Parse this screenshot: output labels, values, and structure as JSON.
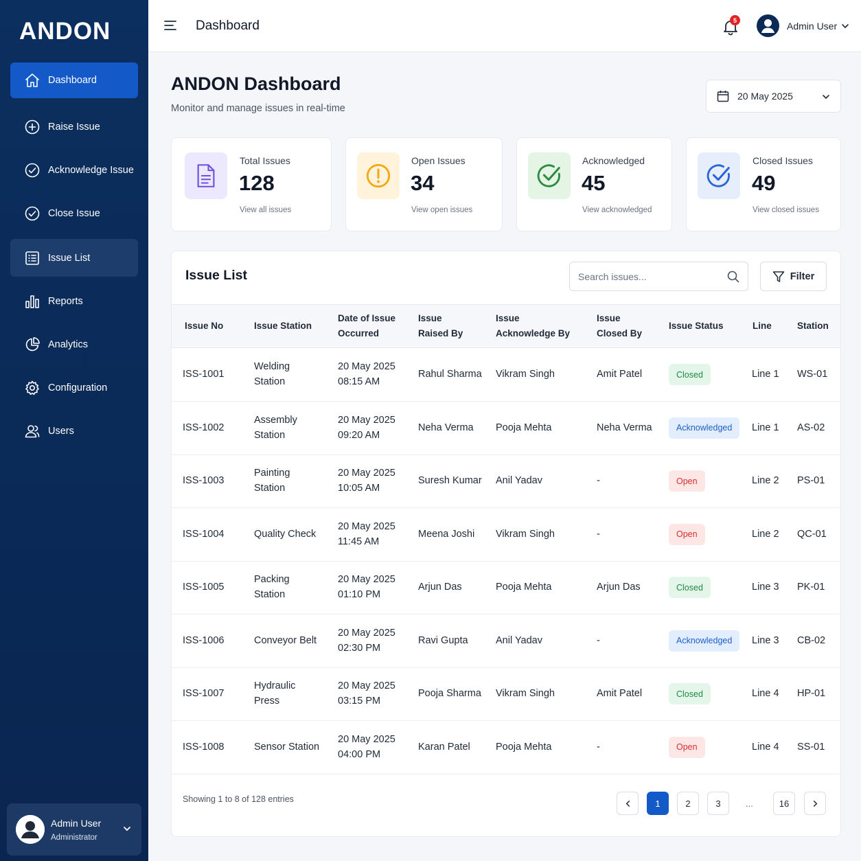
{
  "brand": "ANDON",
  "sidebar": {
    "items": [
      {
        "label": "Dashboard",
        "icon": "home-icon"
      },
      {
        "label": "Raise Issue",
        "icon": "plus-circle-icon"
      },
      {
        "label": "Acknowledge Issue",
        "icon": "check-circle-icon"
      },
      {
        "label": "Close Issue",
        "icon": "check-circle-icon"
      },
      {
        "label": "Issue List",
        "icon": "list-icon"
      },
      {
        "label": "Reports",
        "icon": "bar-chart-icon"
      },
      {
        "label": "Analytics",
        "icon": "pie-chart-icon"
      },
      {
        "label": "Configuration",
        "icon": "gear-icon"
      },
      {
        "label": "Users",
        "icon": "users-icon"
      }
    ],
    "user": {
      "name": "Admin User",
      "role": "Administrator"
    }
  },
  "header": {
    "title": "Dashboard",
    "notification_count": "5",
    "user_name": "Admin User"
  },
  "page": {
    "title": "ANDON Dashboard",
    "subtitle": "Monitor and manage issues in real-time",
    "date": "20 May 2025"
  },
  "cards": [
    {
      "label": "Total Issues",
      "value": "128",
      "link": "View all issues",
      "color": "#6d4ee0"
    },
    {
      "label": "Open Issues",
      "value": "34",
      "link": "View open issues",
      "color": "#f4a814"
    },
    {
      "label": "Acknowledged",
      "value": "45",
      "link": "View acknowledged",
      "color": "#2e8b3e"
    },
    {
      "label": "Closed Issues",
      "value": "49",
      "link": "View closed issues",
      "color": "#2a64d8"
    }
  ],
  "issue_list": {
    "title": "Issue List",
    "search_placeholder": "Search issues...",
    "filter_label": "Filter",
    "columns": [
      [
        "Issue No"
      ],
      [
        "Issue Station"
      ],
      [
        "Date of Issue",
        "Occurred"
      ],
      [
        "Issue",
        "Raised By"
      ],
      [
        "Issue",
        "Acknowledge By"
      ],
      [
        "Issue",
        "Closed By"
      ],
      [
        "Issue Status"
      ],
      [
        "Line"
      ],
      [
        "Station"
      ]
    ],
    "rows": [
      {
        "no": "ISS-1001",
        "station": [
          "Welding",
          "Station"
        ],
        "date": "20 May 2025",
        "time": "08:15 AM",
        "raised": "Rahul Sharma",
        "ack": "Vikram Singh",
        "closed": "Amit Patel",
        "status": "Closed",
        "line": "Line 1",
        "code": "WS-01"
      },
      {
        "no": "ISS-1002",
        "station": [
          "Assembly",
          "Station"
        ],
        "date": "20 May 2025",
        "time": "09:20 AM",
        "raised": "Neha Verma",
        "ack": "Pooja Mehta",
        "closed": "Neha Verma",
        "status": "Acknowledged",
        "line": "Line 1",
        "code": "AS-02"
      },
      {
        "no": "ISS-1003",
        "station": [
          "Painting",
          "Station"
        ],
        "date": "20 May 2025",
        "time": "10:05 AM",
        "raised": "Suresh Kumar",
        "ack": "Anil Yadav",
        "closed": "-",
        "status": "Open",
        "line": "Line 2",
        "code": "PS-01"
      },
      {
        "no": "ISS-1004",
        "station": [
          "Quality Check"
        ],
        "date": "20 May 2025",
        "time": "11:45 AM",
        "raised": "Meena Joshi",
        "ack": "Vikram Singh",
        "closed": "-",
        "status": "Open",
        "line": "Line 2",
        "code": "QC-01"
      },
      {
        "no": "ISS-1005",
        "station": [
          "Packing",
          "Station"
        ],
        "date": "20 May 2025",
        "time": "01:10 PM",
        "raised": "Arjun Das",
        "ack": "Pooja Mehta",
        "closed": "Arjun Das",
        "status": "Closed",
        "line": "Line 3",
        "code": "PK-01"
      },
      {
        "no": "ISS-1006",
        "station": [
          "Conveyor Belt"
        ],
        "date": "20 May 2025",
        "time": "02:30 PM",
        "raised": "Ravi Gupta",
        "ack": "Anil Yadav",
        "closed": "-",
        "status": "Acknowledged",
        "line": "Line 3",
        "code": "CB-02"
      },
      {
        "no": "ISS-1007",
        "station": [
          "Hydraulic",
          "Press"
        ],
        "date": "20 May 2025",
        "time": "03:15 PM",
        "raised": "Pooja Sharma",
        "ack": "Vikram Singh",
        "closed": "Amit Patel",
        "status": "Closed",
        "line": "Line 4",
        "code": "HP-01"
      },
      {
        "no": "ISS-1008",
        "station": [
          "Sensor Station"
        ],
        "date": "20 May 2025",
        "time": "04:00 PM",
        "raised": "Karan Patel",
        "ack": "Pooja Mehta",
        "closed": "-",
        "status": "Open",
        "line": "Line 4",
        "code": "SS-01"
      }
    ],
    "footer": "Showing 1 to 8 of 128 entries",
    "pages": [
      "1",
      "2",
      "3",
      "16"
    ],
    "ellipsis": "...",
    "current_page": "1"
  },
  "colors": {
    "sidebar_bg": "#0b2a55",
    "accent": "#1459c8",
    "closed": "#1e8a45",
    "acknowledged": "#1d5fc9",
    "open": "#d62d2d"
  }
}
